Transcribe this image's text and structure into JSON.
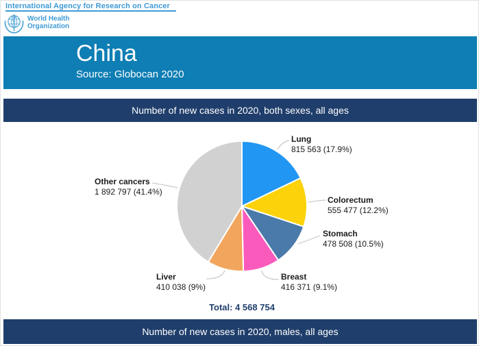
{
  "header": {
    "agency": "International Agency for Research on Cancer",
    "who_line1": "World Health",
    "who_line2": "Organization"
  },
  "title_banner": {
    "title": "China",
    "source": "Source: Globocan 2020",
    "bg_color": "#0e7eb4"
  },
  "section_banners": {
    "both_sexes": "Number of new cases in 2020, both sexes, all ages",
    "males": "Number of new cases in 2020, males, all ages",
    "bg_color": "#1f3e6b"
  },
  "chart_data": {
    "type": "pie",
    "title": "Number of new cases in 2020, both sexes, all ages",
    "total": 4568754,
    "total_display": "Total: 4 568 754",
    "start_angle_deg": 0,
    "direction": "clockwise",
    "slices": [
      {
        "label": "Lung",
        "value": 815563,
        "pct": 17.9,
        "display": "815 563 (17.9%)",
        "color": "#2196f3"
      },
      {
        "label": "Colorectum",
        "value": 555477,
        "pct": 12.2,
        "display": "555 477 (12.2%)",
        "color": "#fcd20a"
      },
      {
        "label": "Stomach",
        "value": 478508,
        "pct": 10.5,
        "display": "478 508 (10.5%)",
        "color": "#4a7aa9"
      },
      {
        "label": "Breast",
        "value": 416371,
        "pct": 9.1,
        "display": "416 371 (9.1%)",
        "color": "#fb5abd"
      },
      {
        "label": "Liver",
        "value": 410038,
        "pct": 9.0,
        "display": "410 038 (9%)",
        "color": "#f2a55c"
      },
      {
        "label": "Other cancers",
        "value": 1892797,
        "pct": 41.4,
        "display": "1 892 797 (41.4%)",
        "color": "#d1d1d1"
      }
    ]
  }
}
